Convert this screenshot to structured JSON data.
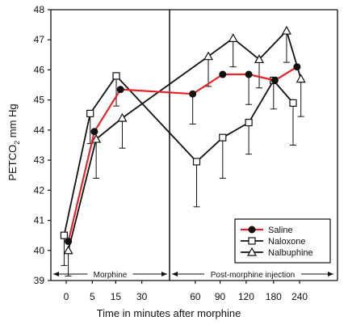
{
  "chart_data": {
    "type": "line",
    "title": "",
    "xlabel": "Time in minutes after morphine",
    "ylabel_main": "PETCO",
    "ylabel_sub": "2",
    "ylabel_unit": " mm Hg",
    "ylim": [
      39,
      48
    ],
    "yticks": [
      39,
      40,
      41,
      42,
      43,
      44,
      45,
      46,
      47,
      48
    ],
    "categories": [
      "0",
      "5",
      "15",
      "30",
      "60",
      "90",
      "120",
      "180",
      "240"
    ],
    "x_positions": [
      0,
      1,
      1.9,
      2.9,
      4.95,
      5.9,
      6.9,
      7.95,
      8.95
    ],
    "series": [
      {
        "name": "Saline",
        "color": "#e8232a",
        "marker": "filled-circle",
        "x": [
          0.08,
          1.08,
          2.08,
          4.85,
          6.0,
          7.0,
          8.0,
          8.85
        ],
        "values": [
          40.3,
          43.95,
          45.35,
          45.2,
          45.85,
          45.85,
          45.65,
          46.1
        ],
        "err": [
          0,
          0,
          0,
          1.0,
          0,
          1.0,
          0,
          0
        ]
      },
      {
        "name": "Naloxone",
        "color": "#111111",
        "marker": "open-square",
        "x": [
          -0.08,
          0.92,
          1.92,
          5.0,
          6.0,
          7.0,
          7.95,
          8.7
        ],
        "values": [
          40.5,
          44.55,
          45.8,
          42.95,
          43.75,
          44.25,
          45.65,
          44.9
        ],
        "err": [
          1.0,
          1.0,
          1.0,
          1.5,
          1.35,
          1.05,
          0.95,
          1.4
        ]
      },
      {
        "name": "Nalbuphine",
        "color": "#111111",
        "marker": "open-triangle",
        "x": [
          0.08,
          1.15,
          2.15,
          5.45,
          6.4,
          7.4,
          8.45,
          9.0
        ],
        "values": [
          40.0,
          43.7,
          44.4,
          46.45,
          47.05,
          46.35,
          47.3,
          45.7
        ],
        "err": [
          0.85,
          1.3,
          1.0,
          1.0,
          0.95,
          0.95,
          1.05,
          1.25
        ]
      }
    ],
    "annotations": [
      {
        "text": "Morphine",
        "from": 0,
        "to": 2.3
      },
      {
        "text": "Post-morphine injection",
        "from": 2.3,
        "to": 8.95
      }
    ],
    "legend_placement": "lower-right",
    "grid": false
  }
}
